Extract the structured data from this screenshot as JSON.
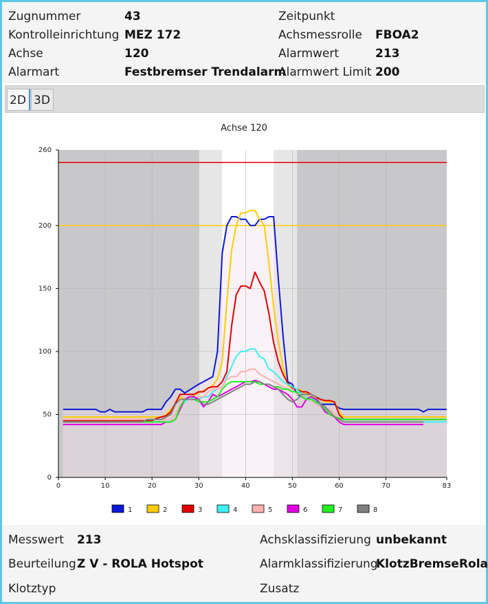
{
  "info": {
    "zugnummer_label": "Zugnummer",
    "zugnummer": "43",
    "kontrolle_label": "Kontrolleinrichtung",
    "kontrolle": "MEZ 172",
    "achse_label": "Achse",
    "achse": "120",
    "alarmart_label": "Alarmart",
    "alarmart": "Festbremser Trendalarm",
    "zeitpunkt_label": "Zeitpunkt",
    "zeitpunkt": "",
    "achsmessrolle_label": "Achsmessrolle",
    "achsmessrolle": "FBOA2",
    "alarmwert_label": "Alarmwert",
    "alarmwert": "213",
    "limit_label": "Alarmwert Limit",
    "limit": "200"
  },
  "tabs": [
    {
      "label": "2D"
    },
    {
      "label": "3D"
    }
  ],
  "details": {
    "messwert_label": "Messwert",
    "messwert": "213",
    "beurteilung_label": "Beurteilung",
    "beurteilung": "Z V - ROLA Hotspot",
    "klotztyp_label": "Klotztyp",
    "klotztyp": "",
    "achsklass_label": "Achsklassifizierung",
    "achsklass": "unbekannt",
    "alarmklass_label": "Alarmklassifizierung",
    "alarmklass": "KlotzBremseRola",
    "zusatz_label": "Zusatz",
    "zusatz": ""
  },
  "chart_data": {
    "type": "line",
    "title": "Achse 120",
    "xlabel": "",
    "ylabel": "",
    "xlim": [
      0,
      83
    ],
    "ylim": [
      0,
      260
    ],
    "xticks": [
      0,
      10,
      20,
      30,
      40,
      50,
      60,
      70,
      83
    ],
    "yticks": [
      0,
      50,
      100,
      150,
      200,
      260
    ],
    "grid": true,
    "legend_position": "bottom",
    "bands": [
      {
        "from": 0,
        "to": 30,
        "color": "#c8c7c9"
      },
      {
        "from": 30,
        "to": 35,
        "color": "#e6e6e6"
      },
      {
        "from": 35,
        "to": 46,
        "color": "#ffffff"
      },
      {
        "from": 46,
        "to": 51,
        "color": "#e6e6e6"
      },
      {
        "from": 51,
        "to": 83,
        "color": "#c8c7c9"
      }
    ],
    "thresholds": [
      {
        "value": 250,
        "color": "#e00000"
      },
      {
        "value": 200,
        "color": "#ffcc00"
      }
    ],
    "series": [
      {
        "name": "1",
        "color": "#0a18d6",
        "x": [
          1,
          8,
          9,
          10,
          11,
          12,
          13,
          18,
          19,
          22,
          23,
          24,
          25,
          26,
          27,
          30,
          31,
          33,
          34,
          35,
          36,
          37,
          38,
          39,
          40,
          41,
          42,
          43,
          44,
          45,
          46,
          47,
          48,
          49,
          50,
          51,
          52,
          53,
          54,
          55,
          56,
          57,
          58,
          59,
          60,
          61,
          77,
          78,
          79,
          83
        ],
        "y": [
          54,
          54,
          52,
          52,
          54,
          52,
          52,
          52,
          54,
          54,
          60,
          64,
          70,
          70,
          67,
          74,
          76,
          80,
          100,
          178,
          200,
          207,
          207,
          205,
          205,
          200,
          200,
          205,
          205,
          207,
          207,
          158,
          113,
          76,
          74,
          66,
          64,
          62,
          62,
          60,
          58,
          58,
          58,
          58,
          55,
          54,
          54,
          52,
          54,
          54
        ]
      },
      {
        "name": "2",
        "color": "#ffcc00",
        "x": [
          1,
          18,
          19,
          22,
          23,
          24,
          25,
          26,
          27,
          30,
          31,
          33,
          34,
          35,
          36,
          37,
          38,
          39,
          40,
          41,
          42,
          43,
          44,
          45,
          46,
          47,
          48,
          49,
          50,
          51,
          52,
          53,
          54,
          55,
          56,
          57,
          58,
          59,
          60,
          61,
          83
        ],
        "y": [
          48,
          48,
          48,
          48,
          50,
          54,
          58,
          64,
          62,
          67,
          69,
          73,
          78,
          92,
          140,
          180,
          200,
          210,
          210,
          212,
          212,
          205,
          200,
          170,
          135,
          108,
          88,
          73,
          71,
          70,
          69,
          66,
          64,
          63,
          62,
          60,
          60,
          60,
          52,
          48,
          48
        ]
      },
      {
        "name": "3",
        "color": "#e00000",
        "x": [
          1,
          20,
          21,
          23,
          24,
          26,
          27,
          29,
          30,
          31,
          32,
          33,
          34,
          35,
          36,
          37,
          38,
          39,
          40,
          41,
          42,
          43,
          44,
          45,
          46,
          47,
          48,
          49,
          50,
          51,
          52,
          53,
          54,
          55,
          56,
          57,
          58,
          59,
          60,
          61,
          83
        ],
        "y": [
          45,
          45,
          47,
          49,
          52,
          66,
          66,
          66,
          68,
          68,
          71,
          72,
          72,
          76,
          84,
          120,
          145,
          152,
          152,
          150,
          163,
          155,
          148,
          130,
          107,
          92,
          82,
          75,
          71,
          70,
          68,
          68,
          66,
          64,
          62,
          61,
          61,
          60,
          50,
          46,
          46
        ]
      },
      {
        "name": "4",
        "color": "#3ef0f0",
        "x": [
          1,
          24,
          25,
          26,
          27,
          28,
          30,
          31,
          32,
          33,
          34,
          35,
          36,
          37,
          38,
          39,
          40,
          41,
          42,
          43,
          44,
          45,
          46,
          47,
          48,
          49,
          50,
          51,
          52,
          53,
          54,
          55,
          56,
          57,
          58,
          59,
          60,
          61,
          83
        ],
        "y": [
          44,
          44,
          46,
          56,
          60,
          64,
          62,
          64,
          64,
          68,
          70,
          72,
          80,
          88,
          96,
          100,
          100,
          102,
          102,
          96,
          94,
          86,
          84,
          80,
          76,
          74,
          72,
          70,
          66,
          63,
          64,
          60,
          56,
          54,
          54,
          50,
          46,
          44,
          44
        ]
      },
      {
        "name": "5",
        "color": "#ffb0b0",
        "x": [
          1,
          24,
          25,
          26,
          27,
          29,
          30,
          31,
          32,
          33,
          34,
          35,
          36,
          37,
          38,
          39,
          40,
          41,
          42,
          43,
          44,
          45,
          46,
          47,
          48,
          49,
          50,
          51,
          52,
          53,
          54,
          55,
          56,
          57,
          58,
          59,
          60,
          61,
          83
        ],
        "y": [
          46,
          46,
          50,
          58,
          62,
          62,
          64,
          64,
          68,
          70,
          70,
          72,
          78,
          80,
          80,
          84,
          84,
          86,
          86,
          82,
          80,
          78,
          76,
          74,
          72,
          70,
          70,
          66,
          66,
          62,
          62,
          58,
          56,
          56,
          54,
          50,
          47,
          46,
          46
        ]
      },
      {
        "name": "6",
        "color": "#e000e0",
        "x": [
          1,
          22,
          23,
          24,
          25,
          26,
          27,
          28,
          29,
          30,
          31,
          32,
          33,
          34,
          35,
          36,
          37,
          38,
          39,
          40,
          41,
          42,
          43,
          44,
          45,
          46,
          47,
          48,
          49,
          50,
          51,
          52,
          53,
          54,
          55,
          56,
          57,
          58,
          59,
          60,
          61,
          78
        ],
        "y": [
          42,
          42,
          44,
          44,
          46,
          54,
          62,
          64,
          64,
          62,
          56,
          60,
          66,
          64,
          66,
          68,
          70,
          72,
          74,
          76,
          76,
          77,
          76,
          74,
          72,
          70,
          70,
          68,
          66,
          62,
          56,
          56,
          62,
          64,
          62,
          58,
          52,
          50,
          48,
          44,
          42,
          42
        ]
      },
      {
        "name": "7",
        "color": "#22ee22",
        "x": [
          1,
          24,
          25,
          26,
          27,
          29,
          30,
          31,
          32,
          33,
          34,
          35,
          36,
          37,
          38,
          39,
          40,
          41,
          42,
          43,
          44,
          45,
          46,
          47,
          48,
          49,
          50,
          51,
          52,
          53,
          54,
          55,
          56,
          57,
          58,
          59,
          60,
          61,
          83
        ],
        "y": [
          44,
          44,
          46,
          56,
          62,
          62,
          60,
          60,
          60,
          62,
          64,
          70,
          74,
          76,
          76,
          76,
          76,
          76,
          76,
          74,
          74,
          74,
          72,
          72,
          70,
          70,
          68,
          68,
          64,
          62,
          62,
          60,
          58,
          54,
          50,
          48,
          47,
          46,
          46
        ]
      },
      {
        "name": "8",
        "color": "#808080",
        "x": [
          1,
          18,
          19,
          20,
          22,
          23,
          24,
          25,
          26,
          27,
          29,
          30,
          31,
          32,
          33,
          34,
          35,
          36,
          37,
          38,
          39,
          40,
          41,
          42,
          43,
          44,
          45,
          46,
          47,
          48,
          49,
          50,
          51,
          52,
          53,
          54,
          55,
          56,
          57,
          58,
          59,
          60,
          61,
          78
        ],
        "y": [
          44,
          44,
          46,
          46,
          46,
          48,
          50,
          58,
          62,
          62,
          62,
          62,
          58,
          58,
          60,
          62,
          64,
          66,
          68,
          70,
          72,
          74,
          74,
          76,
          76,
          74,
          74,
          72,
          70,
          66,
          62,
          60,
          62,
          66,
          66,
          66,
          64,
          58,
          56,
          52,
          48,
          46,
          44,
          44
        ]
      }
    ]
  }
}
